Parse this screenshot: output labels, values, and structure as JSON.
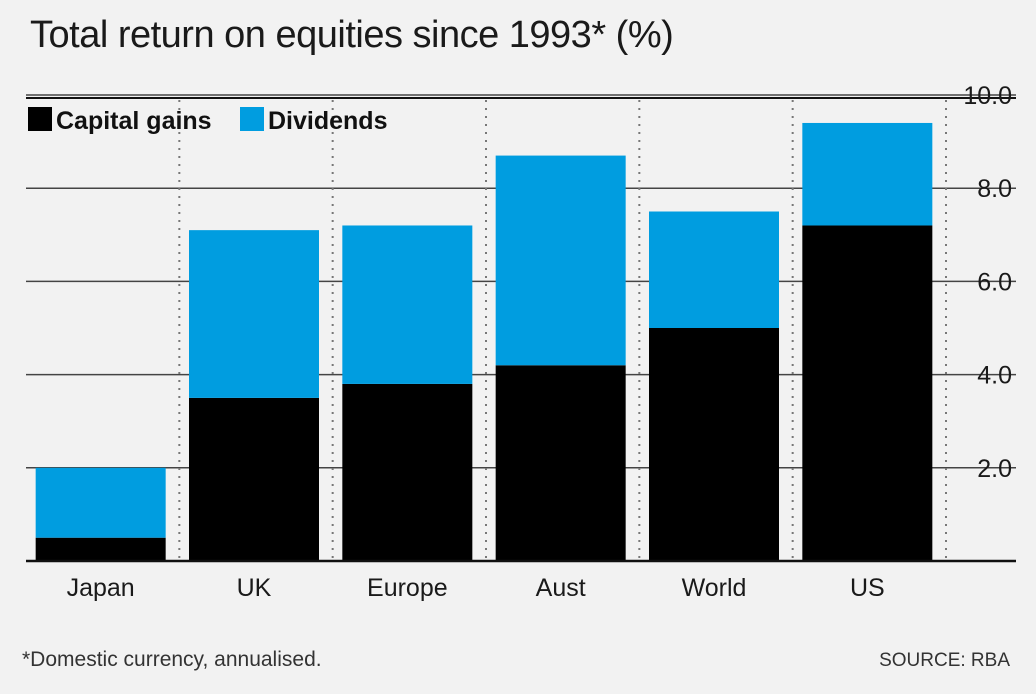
{
  "title": "Total return on equities since 1993* (%)",
  "footnote": "*Domestic currency, annualised.",
  "source": "SOURCE: RBA",
  "colors": {
    "capital": "#000000",
    "dividends": "#009de0",
    "background": "#f2f2f2",
    "grid": "#444444"
  },
  "chart_data": {
    "type": "bar",
    "stacked": true,
    "categories": [
      "Japan",
      "UK",
      "Europe",
      "Aust",
      "World",
      "US"
    ],
    "series": [
      {
        "name": "Capital gains",
        "values": [
          0.5,
          3.5,
          3.8,
          4.2,
          5.0,
          7.2
        ]
      },
      {
        "name": "Dividends",
        "values": [
          1.5,
          3.6,
          3.4,
          4.5,
          2.5,
          2.2
        ]
      }
    ],
    "yticks": [
      "2.0",
      "4.0",
      "6.0",
      "8.0",
      "10.0"
    ],
    "ylim": [
      0,
      10
    ],
    "legend_position": "top-left",
    "y_axis_position": "right",
    "grid": true
  }
}
